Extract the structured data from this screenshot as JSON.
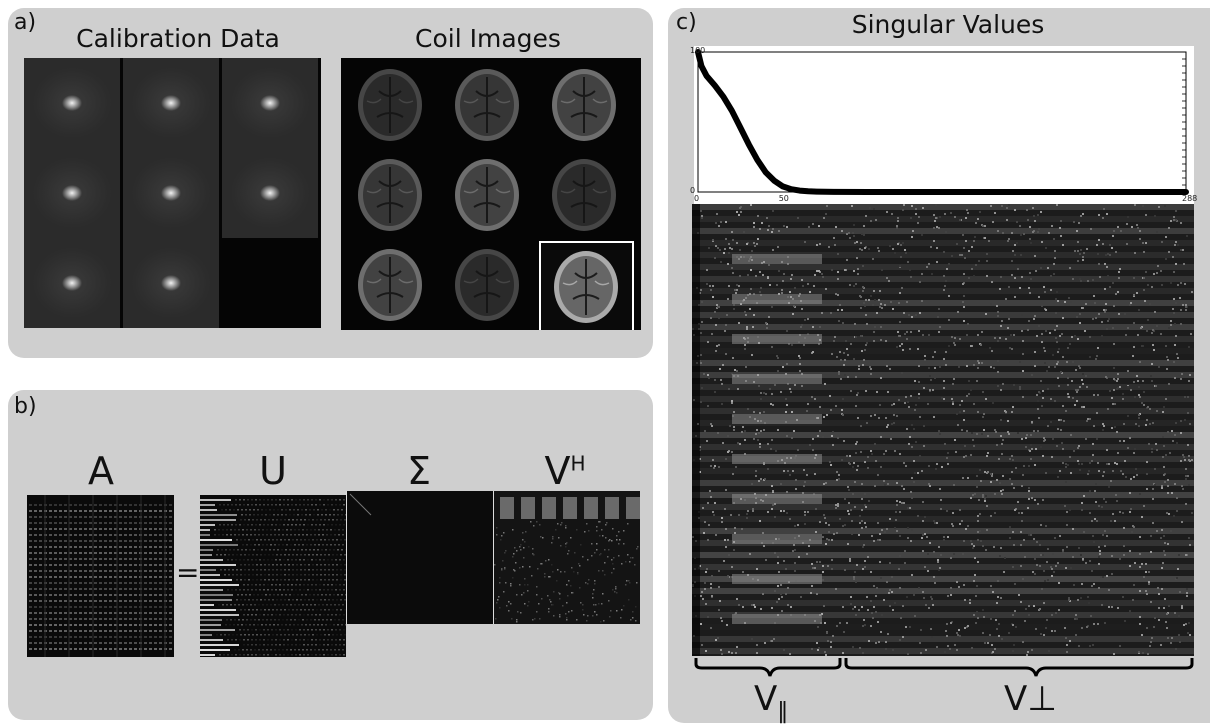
{
  "panel_a": {
    "label": "a)",
    "calibration_title": "Calibration Data",
    "coil_title": "Coil Images",
    "calibration_hotspots": [
      [
        true,
        true,
        true
      ],
      [
        true,
        true,
        true
      ],
      [
        true,
        true,
        false
      ]
    ],
    "coil_grid": [
      [
        false,
        false,
        false
      ],
      [
        false,
        false,
        false
      ],
      [
        false,
        false,
        true
      ]
    ]
  },
  "panel_b": {
    "label": "b)",
    "equals": "=",
    "matrices": [
      "A",
      "U",
      "Σ",
      "V"
    ],
    "superscript": "H"
  },
  "panel_c": {
    "label": "c)",
    "title": "Singular Values",
    "brace_parallel_base": "V",
    "brace_parallel_sub": "‖",
    "brace_perp_label": "V⊥"
  },
  "chart_data": {
    "type": "line",
    "title": "Singular Values",
    "xlabel": "",
    "ylabel": "",
    "xlim": [
      0,
      288
    ],
    "ylim": [
      0,
      100
    ],
    "x_ticks": [
      "0",
      "50",
      "288"
    ],
    "y_ticks": [
      "0",
      "100"
    ],
    "series": [
      {
        "x": [
          0,
          2,
          5,
          10,
          15,
          20,
          25,
          30,
          35,
          40,
          45,
          50,
          55,
          60,
          65,
          70,
          80,
          100,
          150,
          200,
          250,
          288
        ],
        "values": [
          100,
          90,
          83,
          76,
          68,
          58,
          46,
          34,
          23,
          14,
          8,
          4,
          2,
          1,
          0.5,
          0.3,
          0.1,
          0,
          0,
          0,
          0,
          0
        ]
      }
    ]
  }
}
